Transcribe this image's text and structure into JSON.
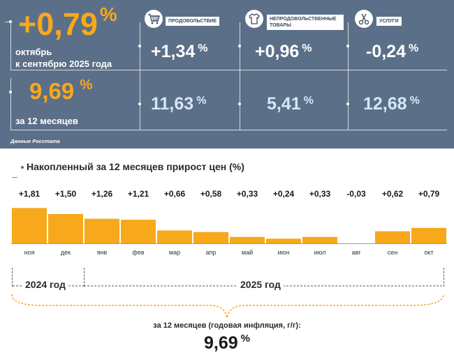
{
  "summary": {
    "monthly_value": "+0,79",
    "monthly_label_line1": "октябрь",
    "monthly_label_line2": "к сентябрю 2025 года",
    "annual_value": "9,69",
    "annual_label": "за 12 месяцев",
    "percent_sign": "%"
  },
  "categories": [
    {
      "name": "ПРОДОВОЛЬСТВИЕ",
      "monthly": "+1,34",
      "annual": "11,63",
      "icon": "shopping-cart-icon"
    },
    {
      "name": "НЕПРОДОВОЛЬСТВЕННЫЕ ТОВАРЫ",
      "monthly": "+0,96",
      "annual": "5,41",
      "icon": "clothing-icon"
    },
    {
      "name": "УСЛУГИ",
      "monthly": "-0,24",
      "annual": "12,68",
      "icon": "scissors-icon"
    }
  ],
  "source": "Данные Росстата",
  "chart_data": {
    "type": "bar",
    "title": "Накопленный за 12 месяцев прирост цен (%)",
    "categories": [
      "ноя",
      "дек",
      "янв",
      "фев",
      "мар",
      "апр",
      "май",
      "июн",
      "июл",
      "авг",
      "сен",
      "окт"
    ],
    "values": [
      1.81,
      1.5,
      1.26,
      1.21,
      0.66,
      0.58,
      0.33,
      0.24,
      0.33,
      -0.03,
      0.62,
      0.79
    ],
    "value_labels": [
      "+1,81",
      "+1,50",
      "+1,26",
      "+1,21",
      "+0,66",
      "+0,58",
      "+0,33",
      "+0,24",
      "+0,33",
      "-0,03",
      "+0,62",
      "+0,79"
    ],
    "year_groups": [
      {
        "label": "2024 год",
        "months": [
          "ноя",
          "дек"
        ]
      },
      {
        "label": "2025 год",
        "months": [
          "янв",
          "фев",
          "мар",
          "апр",
          "май",
          "июн",
          "июл",
          "авг",
          "сен",
          "окт"
        ]
      }
    ],
    "bar_color": "#f7a81b",
    "grid": false
  },
  "footer": {
    "annual_label": "за 12 месяцев (годовая инфляция, г/г):",
    "annual_value": "9,69",
    "percent_sign": "%"
  },
  "colors": {
    "panel_bg": "#5c6f88",
    "accent_orange": "#f7a81b",
    "light_blue": "#d5e6f5"
  }
}
